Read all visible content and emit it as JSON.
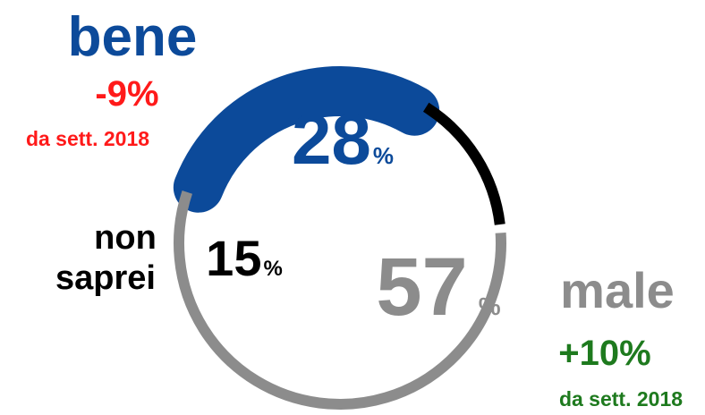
{
  "chart_data": {
    "type": "pie",
    "style": "donut",
    "categories": [
      "bene",
      "non saprei",
      "male"
    ],
    "values": [
      28,
      15,
      57
    ],
    "unit": "%",
    "colors": [
      "#0c4a9a",
      "#000000",
      "#8c8c8c"
    ],
    "changes": [
      {
        "category": "bene",
        "change": "-9%",
        "note": "da sett. 2018",
        "color": "#ff1a1a"
      },
      {
        "category": "male",
        "change": "+10%",
        "note": "da sett. 2018",
        "color": "#1e7a1e"
      }
    ],
    "labels": {
      "bene": "bene",
      "non_saprei_line1": "non",
      "non_saprei_line2": "saprei",
      "male": "male"
    }
  }
}
